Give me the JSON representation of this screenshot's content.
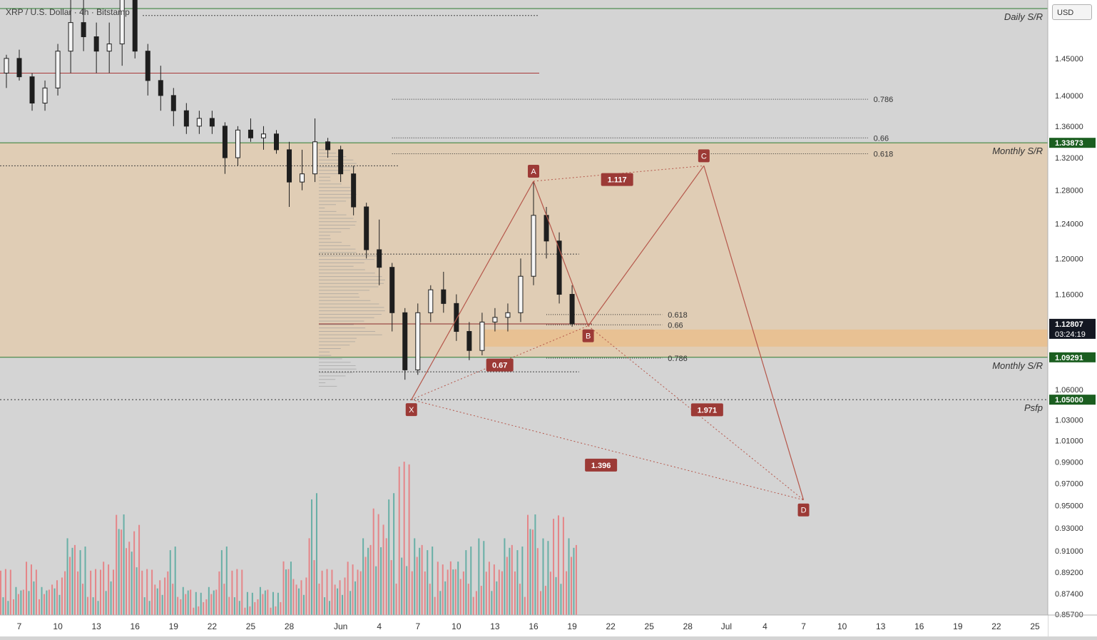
{
  "header": {
    "symbol": "XRP / U.S. Dollar · 4h · Bitstamp",
    "currency": "USD"
  },
  "chart_data": {
    "type": "candlestick",
    "price_axis": {
      "scale": "log",
      "range": [
        0.8565,
        1.52
      ],
      "ticks": [
        "1.45000",
        "1.40000",
        "1.36000",
        "1.32000",
        "1.28000",
        "1.24000",
        "1.20000",
        "1.16000",
        "1.06000",
        "1.03000",
        "1.01000",
        "0.99000",
        "0.97000",
        "0.95000",
        "0.93000",
        "0.91000",
        "0.89200",
        "0.87400",
        "0.85700"
      ],
      "badges": [
        {
          "label": "1.33873",
          "value": 1.33873,
          "color": "#1b5e20"
        },
        {
          "label": "1.12807",
          "value": 1.12807,
          "color": "#131722",
          "sub": "03:24:19"
        },
        {
          "label": "1.09291",
          "value": 1.09291,
          "color": "#1b5e20"
        },
        {
          "label": "1.05000",
          "value": 1.05,
          "color": "#1b5e20"
        }
      ]
    },
    "time_axis": {
      "start": "2021-05-05",
      "end": "2021-07-30",
      "ticks": [
        {
          "label": "7",
          "date": "2021-05-07"
        },
        {
          "label": "10",
          "date": "2021-05-10"
        },
        {
          "label": "13",
          "date": "2021-05-13"
        },
        {
          "label": "16",
          "date": "2021-05-16"
        },
        {
          "label": "19",
          "date": "2021-05-19"
        },
        {
          "label": "22",
          "date": "2021-05-22"
        },
        {
          "label": "25",
          "date": "2021-05-25"
        },
        {
          "label": "28",
          "date": "2021-05-28"
        },
        {
          "label": "Jun",
          "date": "2021-06-01"
        },
        {
          "label": "4",
          "date": "2021-06-04"
        },
        {
          "label": "7",
          "date": "2021-06-07"
        },
        {
          "label": "10",
          "date": "2021-06-10"
        },
        {
          "label": "13",
          "date": "2021-06-13"
        },
        {
          "label": "16",
          "date": "2021-06-16"
        },
        {
          "label": "19",
          "date": "2021-06-19"
        },
        {
          "label": "22",
          "date": "2021-06-22"
        },
        {
          "label": "25",
          "date": "2021-06-25"
        },
        {
          "label": "28",
          "date": "2021-06-28"
        },
        {
          "label": "Jul",
          "date": "2021-07-01"
        },
        {
          "label": "4",
          "date": "2021-07-04"
        },
        {
          "label": "7",
          "date": "2021-07-07"
        },
        {
          "label": "10",
          "date": "2021-07-10"
        },
        {
          "label": "13",
          "date": "2021-07-13"
        },
        {
          "label": "16",
          "date": "2021-07-16"
        },
        {
          "label": "19",
          "date": "2021-07-19"
        },
        {
          "label": "22",
          "date": "2021-07-22"
        },
        {
          "label": "25",
          "date": "2021-07-25"
        }
      ]
    },
    "zones": [
      {
        "from": 1.09291,
        "to": 1.33873,
        "color": "#f0c48a",
        "opacity": 0.42
      },
      {
        "from": 1.104,
        "to": 1.122,
        "start": "2021-06-12",
        "color": "#f2b46a",
        "opacity": 0.45
      }
    ],
    "levels": [
      {
        "value": 1.52,
        "label": "Daily S/R",
        "color": "#2e7d32"
      },
      {
        "value": 1.33873,
        "label": "Monthly S/R",
        "color": "#2e7d32"
      },
      {
        "value": 1.09291,
        "label": "Monthly S/R",
        "color": "#2e7d32"
      },
      {
        "value": 1.05,
        "label": "Psfp",
        "color": "#333333",
        "dashed": true
      }
    ],
    "fib_levels": [
      {
        "label": "0.786",
        "value": 1.395,
        "start": "2021-06-05",
        "end": "2021-07-12"
      },
      {
        "label": "0.66",
        "value": 1.345,
        "start": "2021-06-05",
        "end": "2021-07-12"
      },
      {
        "label": "0.618",
        "value": 1.325,
        "start": "2021-06-05",
        "end": "2021-07-12"
      },
      {
        "label": "0.618",
        "value": 1.138,
        "start": "2021-06-17",
        "end": "2021-06-26"
      },
      {
        "label": "0.66",
        "value": 1.127,
        "start": "2021-06-17",
        "end": "2021-06-26"
      },
      {
        "label": "0.786",
        "value": 1.092,
        "start": "2021-06-17",
        "end": "2021-06-26"
      }
    ],
    "harmonic": {
      "points": [
        {
          "label": "X",
          "date": "2021-06-06T12:00",
          "price": 1.05
        },
        {
          "label": "A",
          "date": "2021-06-16T00:00",
          "price": 1.291
        },
        {
          "label": "B",
          "date": "2021-06-20T06:00",
          "price": 1.126
        },
        {
          "label": "C",
          "date": "2021-06-29T06:00",
          "price": 1.31
        },
        {
          "label": "D",
          "date": "2021-07-07T00:00",
          "price": 0.955
        }
      ],
      "ratios": [
        {
          "label": "0.67",
          "date": "2021-06-13T09:00",
          "price": 1.085
        },
        {
          "label": "1.117",
          "date": "2021-06-22T12:00",
          "price": 1.293
        },
        {
          "label": "1.971",
          "date": "2021-06-29T12:00",
          "price": 1.04
        },
        {
          "label": "1.396",
          "date": "2021-06-21T06:00",
          "price": 0.987
        }
      ]
    },
    "candles": [
      {
        "date": "2021-05-05",
        "open": 1.445,
        "high": 1.46,
        "low": 1.42,
        "close": 1.43
      },
      {
        "date": "2021-05-06",
        "open": 1.43,
        "high": 1.455,
        "low": 1.41,
        "close": 1.45
      },
      {
        "date": "2021-05-07",
        "open": 1.45,
        "high": 1.462,
        "low": 1.42,
        "close": 1.425
      },
      {
        "date": "2021-05-08",
        "open": 1.425,
        "high": 1.43,
        "low": 1.38,
        "close": 1.39
      },
      {
        "date": "2021-05-09",
        "open": 1.39,
        "high": 1.42,
        "low": 1.38,
        "close": 1.41
      },
      {
        "date": "2021-05-10",
        "open": 1.41,
        "high": 1.47,
        "low": 1.4,
        "close": 1.46
      },
      {
        "date": "2021-05-11",
        "open": 1.46,
        "high": 1.55,
        "low": 1.43,
        "close": 1.5
      },
      {
        "date": "2021-05-12",
        "open": 1.5,
        "high": 1.58,
        "low": 1.46,
        "close": 1.48
      },
      {
        "date": "2021-05-13",
        "open": 1.48,
        "high": 1.5,
        "low": 1.43,
        "close": 1.46
      },
      {
        "date": "2021-05-14",
        "open": 1.46,
        "high": 1.5,
        "low": 1.43,
        "close": 1.47
      },
      {
        "date": "2021-05-15",
        "open": 1.47,
        "high": 1.6,
        "low": 1.44,
        "close": 1.55
      },
      {
        "date": "2021-05-16",
        "open": 1.55,
        "high": 1.57,
        "low": 1.45,
        "close": 1.46
      },
      {
        "date": "2021-05-17",
        "open": 1.46,
        "high": 1.47,
        "low": 1.4,
        "close": 1.42
      },
      {
        "date": "2021-05-18",
        "open": 1.42,
        "high": 1.44,
        "low": 1.38,
        "close": 1.4
      },
      {
        "date": "2021-05-19",
        "open": 1.4,
        "high": 1.41,
        "low": 1.36,
        "close": 1.38
      },
      {
        "date": "2021-05-20",
        "open": 1.38,
        "high": 1.39,
        "low": 1.35,
        "close": 1.36
      },
      {
        "date": "2021-05-21",
        "open": 1.36,
        "high": 1.38,
        "low": 1.35,
        "close": 1.37
      },
      {
        "date": "2021-05-22",
        "open": 1.37,
        "high": 1.38,
        "low": 1.35,
        "close": 1.36
      },
      {
        "date": "2021-05-23",
        "open": 1.36,
        "high": 1.365,
        "low": 1.3,
        "close": 1.32
      },
      {
        "date": "2021-05-24",
        "open": 1.32,
        "high": 1.36,
        "low": 1.31,
        "close": 1.355
      },
      {
        "date": "2021-05-25",
        "open": 1.355,
        "high": 1.37,
        "low": 1.34,
        "close": 1.345
      },
      {
        "date": "2021-05-26",
        "open": 1.345,
        "high": 1.36,
        "low": 1.33,
        "close": 1.35
      },
      {
        "date": "2021-05-27",
        "open": 1.35,
        "high": 1.355,
        "low": 1.325,
        "close": 1.33
      },
      {
        "date": "2021-05-28",
        "open": 1.33,
        "high": 1.34,
        "low": 1.26,
        "close": 1.29
      },
      {
        "date": "2021-05-29",
        "open": 1.29,
        "high": 1.33,
        "low": 1.28,
        "close": 1.3
      },
      {
        "date": "2021-05-30",
        "open": 1.3,
        "high": 1.37,
        "low": 1.29,
        "close": 1.34
      },
      {
        "date": "2021-05-31",
        "open": 1.34,
        "high": 1.345,
        "low": 1.32,
        "close": 1.33
      },
      {
        "date": "2021-06-01",
        "open": 1.33,
        "high": 1.335,
        "low": 1.29,
        "close": 1.3
      },
      {
        "date": "2021-06-02",
        "open": 1.3,
        "high": 1.31,
        "low": 1.25,
        "close": 1.26
      },
      {
        "date": "2021-06-03",
        "open": 1.26,
        "high": 1.265,
        "low": 1.2,
        "close": 1.21
      },
      {
        "date": "2021-06-04",
        "open": 1.21,
        "high": 1.245,
        "low": 1.17,
        "close": 1.19
      },
      {
        "date": "2021-06-05",
        "open": 1.19,
        "high": 1.195,
        "low": 1.12,
        "close": 1.14
      },
      {
        "date": "2021-06-06",
        "open": 1.14,
        "high": 1.145,
        "low": 1.07,
        "close": 1.08
      },
      {
        "date": "2021-06-07",
        "open": 1.08,
        "high": 1.15,
        "low": 1.075,
        "close": 1.14
      },
      {
        "date": "2021-06-08",
        "open": 1.14,
        "high": 1.17,
        "low": 1.13,
        "close": 1.165
      },
      {
        "date": "2021-06-09",
        "open": 1.165,
        "high": 1.185,
        "low": 1.14,
        "close": 1.15
      },
      {
        "date": "2021-06-10",
        "open": 1.15,
        "high": 1.16,
        "low": 1.11,
        "close": 1.12
      },
      {
        "date": "2021-06-11",
        "open": 1.12,
        "high": 1.13,
        "low": 1.09,
        "close": 1.1
      },
      {
        "date": "2021-06-12",
        "open": 1.1,
        "high": 1.14,
        "low": 1.095,
        "close": 1.13
      },
      {
        "date": "2021-06-13",
        "open": 1.13,
        "high": 1.145,
        "low": 1.12,
        "close": 1.135
      },
      {
        "date": "2021-06-14",
        "open": 1.135,
        "high": 1.15,
        "low": 1.12,
        "close": 1.14
      },
      {
        "date": "2021-06-15",
        "open": 1.14,
        "high": 1.2,
        "low": 1.13,
        "close": 1.18
      },
      {
        "date": "2021-06-16",
        "open": 1.18,
        "high": 1.291,
        "low": 1.17,
        "close": 1.25
      },
      {
        "date": "2021-06-17",
        "open": 1.25,
        "high": 1.26,
        "low": 1.2,
        "close": 1.22
      },
      {
        "date": "2021-06-18",
        "open": 1.22,
        "high": 1.23,
        "low": 1.15,
        "close": 1.16
      },
      {
        "date": "2021-06-19",
        "open": 1.16,
        "high": 1.17,
        "low": 1.125,
        "close": 1.128
      }
    ],
    "volume": [
      {
        "date": "2021-05-05",
        "value": 0.25,
        "dir": "down"
      },
      {
        "date": "2021-05-06",
        "value": 0.3,
        "dir": "up"
      },
      {
        "date": "2021-05-07",
        "value": 0.2,
        "dir": "down"
      },
      {
        "date": "2021-05-08",
        "value": 0.35,
        "dir": "down"
      },
      {
        "date": "2021-05-09",
        "value": 0.2,
        "dir": "up"
      },
      {
        "date": "2021-05-10",
        "value": 0.25,
        "dir": "up"
      },
      {
        "date": "2021-05-11",
        "value": 0.55,
        "dir": "up"
      },
      {
        "date": "2021-05-12",
        "value": 0.45,
        "dir": "down"
      },
      {
        "date": "2021-05-13",
        "value": 0.3,
        "dir": "up"
      },
      {
        "date": "2021-05-14",
        "value": 0.35,
        "dir": "down"
      },
      {
        "date": "2021-05-15",
        "value": 0.75,
        "dir": "up"
      },
      {
        "date": "2021-05-16",
        "value": 0.6,
        "dir": "down"
      },
      {
        "date": "2021-05-17",
        "value": 0.3,
        "dir": "down"
      },
      {
        "date": "2021-05-18",
        "value": 0.25,
        "dir": "up"
      },
      {
        "date": "2021-05-19",
        "value": 0.45,
        "dir": "down"
      },
      {
        "date": "2021-05-20",
        "value": 0.2,
        "dir": "up"
      },
      {
        "date": "2021-05-21",
        "value": 0.15,
        "dir": "down"
      },
      {
        "date": "2021-05-22",
        "value": 0.2,
        "dir": "up"
      },
      {
        "date": "2021-05-23",
        "value": 0.45,
        "dir": "down"
      },
      {
        "date": "2021-05-24",
        "value": 0.3,
        "dir": "up"
      },
      {
        "date": "2021-05-25",
        "value": 0.15,
        "dir": "down"
      },
      {
        "date": "2021-05-26",
        "value": 0.2,
        "dir": "up"
      },
      {
        "date": "2021-05-27",
        "value": 0.15,
        "dir": "down"
      },
      {
        "date": "2021-05-28",
        "value": 0.4,
        "dir": "down"
      },
      {
        "date": "2021-05-29",
        "value": 0.25,
        "dir": "up"
      },
      {
        "date": "2021-05-30",
        "value": 0.8,
        "dir": "up"
      },
      {
        "date": "2021-05-31",
        "value": 0.3,
        "dir": "down"
      },
      {
        "date": "2021-06-01",
        "value": 0.25,
        "dir": "down"
      },
      {
        "date": "2021-06-02",
        "value": 0.35,
        "dir": "down"
      },
      {
        "date": "2021-06-03",
        "value": 0.55,
        "dir": "down"
      },
      {
        "date": "2021-06-04",
        "value": 0.7,
        "dir": "up"
      },
      {
        "date": "2021-06-05",
        "value": 0.8,
        "dir": "down"
      },
      {
        "date": "2021-06-06",
        "value": 1.0,
        "dir": "down"
      },
      {
        "date": "2021-06-07",
        "value": 0.55,
        "dir": "up"
      },
      {
        "date": "2021-06-08",
        "value": 0.45,
        "dir": "up"
      },
      {
        "date": "2021-06-09",
        "value": 0.35,
        "dir": "up"
      },
      {
        "date": "2021-06-10",
        "value": 0.4,
        "dir": "down"
      },
      {
        "date": "2021-06-11",
        "value": 0.45,
        "dir": "down"
      },
      {
        "date": "2021-06-12",
        "value": 0.5,
        "dir": "up"
      },
      {
        "date": "2021-06-13",
        "value": 0.35,
        "dir": "up"
      },
      {
        "date": "2021-06-14",
        "value": 0.55,
        "dir": "up"
      },
      {
        "date": "2021-06-15",
        "value": 0.45,
        "dir": "up"
      },
      {
        "date": "2021-06-16",
        "value": 0.75,
        "dir": "up"
      },
      {
        "date": "2021-06-17",
        "value": 0.5,
        "dir": "down"
      },
      {
        "date": "2021-06-18",
        "value": 0.65,
        "dir": "down"
      },
      {
        "date": "2021-06-19",
        "value": 0.55,
        "dir": "down"
      }
    ],
    "colors": {
      "up": "#55a89e",
      "down": "#e8777a",
      "candle": "#1e1e1e",
      "pattern": "#b5574b",
      "label_bg": "#9c3a36",
      "axis_bg": "#ffffff"
    }
  }
}
